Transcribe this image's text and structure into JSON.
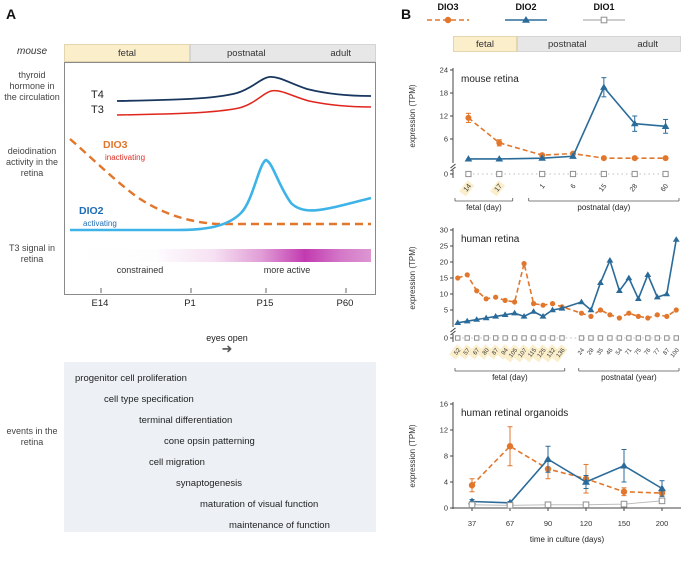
{
  "colors": {
    "dio3": "#e1772c",
    "dio2": "#2b6b99",
    "dio1_marker": "#8f8f8f",
    "dio1_line": "#bdbdbd",
    "t4": "#18365e",
    "t3": "#e0251c",
    "dio2_panel_a": "#3db3e8",
    "fetal_bg": "#fbeecb",
    "stage_gray_bg": "#e7e7e7",
    "magenta": "#c23ab0",
    "events_bg": "#edf1f5",
    "axis": "#444444"
  },
  "icons": {
    "eyes_open_arrow": "➜"
  },
  "panelA": {
    "label": "A",
    "side_labels": {
      "mouse": "mouse",
      "thyroid": "thyroid hormone in the circulation",
      "deiodination": "deiodination activity in the retina",
      "t3_signal": "T3 signal in retina",
      "events": "events in the retina"
    },
    "stage_bar": {
      "fetal": "fetal",
      "postnatal": "postnatal",
      "adult": "adult"
    },
    "curve_labels": {
      "t4": "T4",
      "t3": "T3",
      "dio3": "DIO3",
      "dio3_sub": "inactivating",
      "dio2": "DIO2",
      "dio2_sub": "activating"
    },
    "signal_labels": {
      "constrained": "constrained",
      "more_active": "more active"
    },
    "timeline": [
      "E14",
      "P1",
      "P15",
      "P60"
    ],
    "eyes_open": "eyes open",
    "events": [
      {
        "label": "progenitor cell proliferation",
        "indent": 11
      },
      {
        "label": "cell type specification",
        "indent": 40
      },
      {
        "label": "terminal differentiation",
        "indent": 75
      },
      {
        "label": "cone opsin patterning",
        "indent": 100
      },
      {
        "label": "cell migration",
        "indent": 85
      },
      {
        "label": "synaptogenesis",
        "indent": 112
      },
      {
        "label": "maturation of visual function",
        "indent": 136
      },
      {
        "label": "maintenance of function",
        "indent": 165
      }
    ]
  },
  "panelB": {
    "label": "B",
    "legend": [
      {
        "name": "DIO3"
      },
      {
        "name": "DIO2"
      },
      {
        "name": "DIO1"
      }
    ],
    "stage_strip": {
      "fetal": "fetal",
      "postnatal": "postnatal",
      "adult": "adult"
    }
  },
  "chart_data": [
    {
      "type": "line",
      "title": "mouse retina",
      "ylabel": "expression (TPM)",
      "ylim": [
        0,
        24
      ],
      "yticks": [
        6,
        12,
        18,
        24
      ],
      "broken_axis_zero_label": "0",
      "groups": [
        {
          "label": "fetal (day)",
          "highlight": true,
          "ticks": [
            "14",
            "17"
          ]
        },
        {
          "label": "postnatal (day)",
          "highlight": false,
          "ticks": [
            "1",
            "6",
            "15",
            "28",
            "60"
          ]
        }
      ],
      "series": [
        {
          "name": "DIO3",
          "values": [
            11.5,
            5,
            1.8,
            2.2,
            1,
            1,
            1
          ],
          "errors": [
            1.2,
            0.8,
            0,
            0,
            0,
            0,
            0
          ]
        },
        {
          "name": "DIO2",
          "values": [
            0.8,
            0.8,
            1,
            1.5,
            19.5,
            10,
            9.3
          ],
          "errors": [
            0,
            0,
            0,
            0,
            2.5,
            2,
            1.8
          ]
        },
        {
          "name": "DIO1",
          "values": [
            0,
            0,
            0,
            0,
            0,
            0,
            0
          ],
          "strip": true
        }
      ]
    },
    {
      "type": "line",
      "title": "human retina",
      "ylabel": "expression (TPM)",
      "ylim": [
        0,
        30
      ],
      "yticks": [
        5,
        10,
        15,
        20,
        25,
        30
      ],
      "broken_axis_zero_label": "0",
      "groups": [
        {
          "label": "fetal (day)",
          "highlight": true,
          "ticks": [
            "52",
            "57",
            "67",
            "80",
            "87",
            "94",
            "105",
            "107",
            "115",
            "125",
            "132",
            "136"
          ]
        },
        {
          "label": "postnatal (year)",
          "highlight": false,
          "ticks": [
            "24",
            "28",
            "35",
            "46",
            "54",
            "71",
            "75",
            "76",
            "77",
            "87",
            "100"
          ]
        }
      ],
      "series": [
        {
          "name": "DIO3",
          "values": [
            15,
            16,
            11,
            8.5,
            9,
            8,
            7.5,
            19.5,
            7,
            6.5,
            7,
            6,
            4,
            3,
            5,
            3.5,
            2.5,
            4,
            3,
            2.5,
            3.5,
            3,
            5
          ]
        },
        {
          "name": "DIO2",
          "values": [
            1,
            1.5,
            2,
            2.5,
            3,
            3.5,
            4,
            3,
            4.5,
            3,
            5,
            5.5,
            7.5,
            5,
            13.5,
            20.5,
            11,
            15,
            8.5,
            16,
            9,
            10,
            27
          ]
        },
        {
          "name": "DIO1",
          "values": [
            0,
            0,
            0,
            0,
            0,
            0,
            0,
            0,
            0,
            0,
            0,
            0,
            0,
            0,
            0,
            0,
            0,
            0,
            0,
            0,
            0,
            0,
            0
          ],
          "strip": true
        }
      ]
    },
    {
      "type": "line",
      "title": "human retinal organoids",
      "ylabel": "expression (TPM)",
      "xlabel": "time in culture (days)",
      "ylim": [
        0,
        16
      ],
      "yticks": [
        0,
        4,
        8,
        12,
        16
      ],
      "groups": [
        {
          "label": "",
          "highlight": false,
          "ticks": [
            "37",
            "67",
            "90",
            "120",
            "150",
            "200"
          ]
        }
      ],
      "series": [
        {
          "name": "DIO3",
          "values": [
            3.5,
            9.5,
            6,
            4.5,
            2.5,
            2.3
          ],
          "errors": [
            1,
            3,
            1.5,
            2.2,
            0.6,
            0.5
          ]
        },
        {
          "name": "DIO2",
          "values": [
            1,
            0.8,
            7.5,
            4,
            6.5,
            3
          ],
          "errors": [
            0.3,
            0.2,
            2,
            1,
            2.5,
            1.2
          ]
        },
        {
          "name": "DIO1",
          "values": [
            0.5,
            0.4,
            0.5,
            0.5,
            0.6,
            1.1
          ]
        }
      ]
    }
  ]
}
